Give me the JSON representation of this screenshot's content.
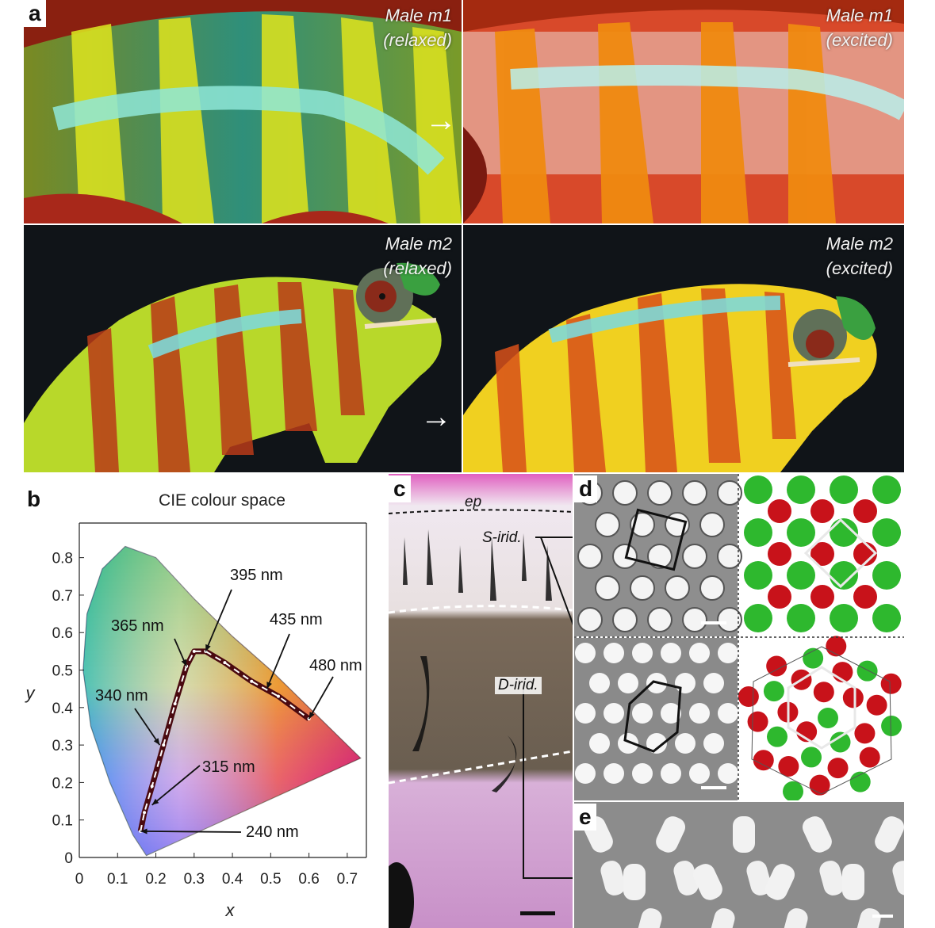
{
  "panel_a": {
    "letter": "a",
    "m1_relaxed": {
      "line1": "Male m1",
      "line2": "(relaxed)"
    },
    "m1_excited": {
      "line1": "Male m1",
      "line2": "(excited)"
    },
    "m2_relaxed": {
      "line1": "Male m2",
      "line2": "(relaxed)"
    },
    "m2_excited": {
      "line1": "Male m2",
      "line2": "(excited)"
    }
  },
  "panel_b": {
    "letter": "b"
  },
  "chart_data": {
    "type": "line",
    "title": "CIE colour space",
    "xlabel": "x",
    "ylabel": "y",
    "xlim": [
      0,
      0.75
    ],
    "ylim": [
      0,
      0.85
    ],
    "x_ticks": [
      "0",
      "0.1",
      "0.2",
      "0.3",
      "0.4",
      "0.5",
      "0.6",
      "0.7"
    ],
    "y_ticks": [
      "0",
      "0.1",
      "0.2",
      "0.3",
      "0.4",
      "0.5",
      "0.6",
      "0.7",
      "0.8"
    ],
    "grid": false,
    "series": [
      {
        "values_xy": [
          [
            0.16,
            0.07
          ],
          [
            0.17,
            0.12
          ],
          [
            0.19,
            0.19
          ],
          [
            0.22,
            0.3
          ],
          [
            0.25,
            0.41
          ],
          [
            0.28,
            0.51
          ],
          [
            0.3,
            0.55
          ],
          [
            0.33,
            0.55
          ],
          [
            0.38,
            0.52
          ],
          [
            0.45,
            0.47
          ],
          [
            0.52,
            0.43
          ],
          [
            0.6,
            0.37
          ]
        ]
      }
    ],
    "annotations": [
      {
        "text": "395 nm",
        "x": 0.33,
        "y": 0.55
      },
      {
        "text": "365 nm",
        "x": 0.28,
        "y": 0.51
      },
      {
        "text": "435 nm",
        "x": 0.49,
        "y": 0.45
      },
      {
        "text": "480 nm",
        "x": 0.6,
        "y": 0.37
      },
      {
        "text": "340 nm",
        "x": 0.21,
        "y": 0.3
      },
      {
        "text": "315 nm",
        "x": 0.19,
        "y": 0.14
      },
      {
        "text": "240 nm",
        "x": 0.16,
        "y": 0.07
      }
    ]
  },
  "panel_c": {
    "letter": "c",
    "ep_label": "ep",
    "s_irid_label": "S-irid.",
    "d_irid_label": "D-irid."
  },
  "panel_d": {
    "letter": "d"
  },
  "panel_e": {
    "letter": "e"
  },
  "colors": {
    "background": "#ffffff",
    "photo_dark": "#101418",
    "tem_gray": "#8a8a8a",
    "sphere_green": "#2eb82e",
    "sphere_red": "#c8121a",
    "path_dark": "#4a0a10"
  }
}
